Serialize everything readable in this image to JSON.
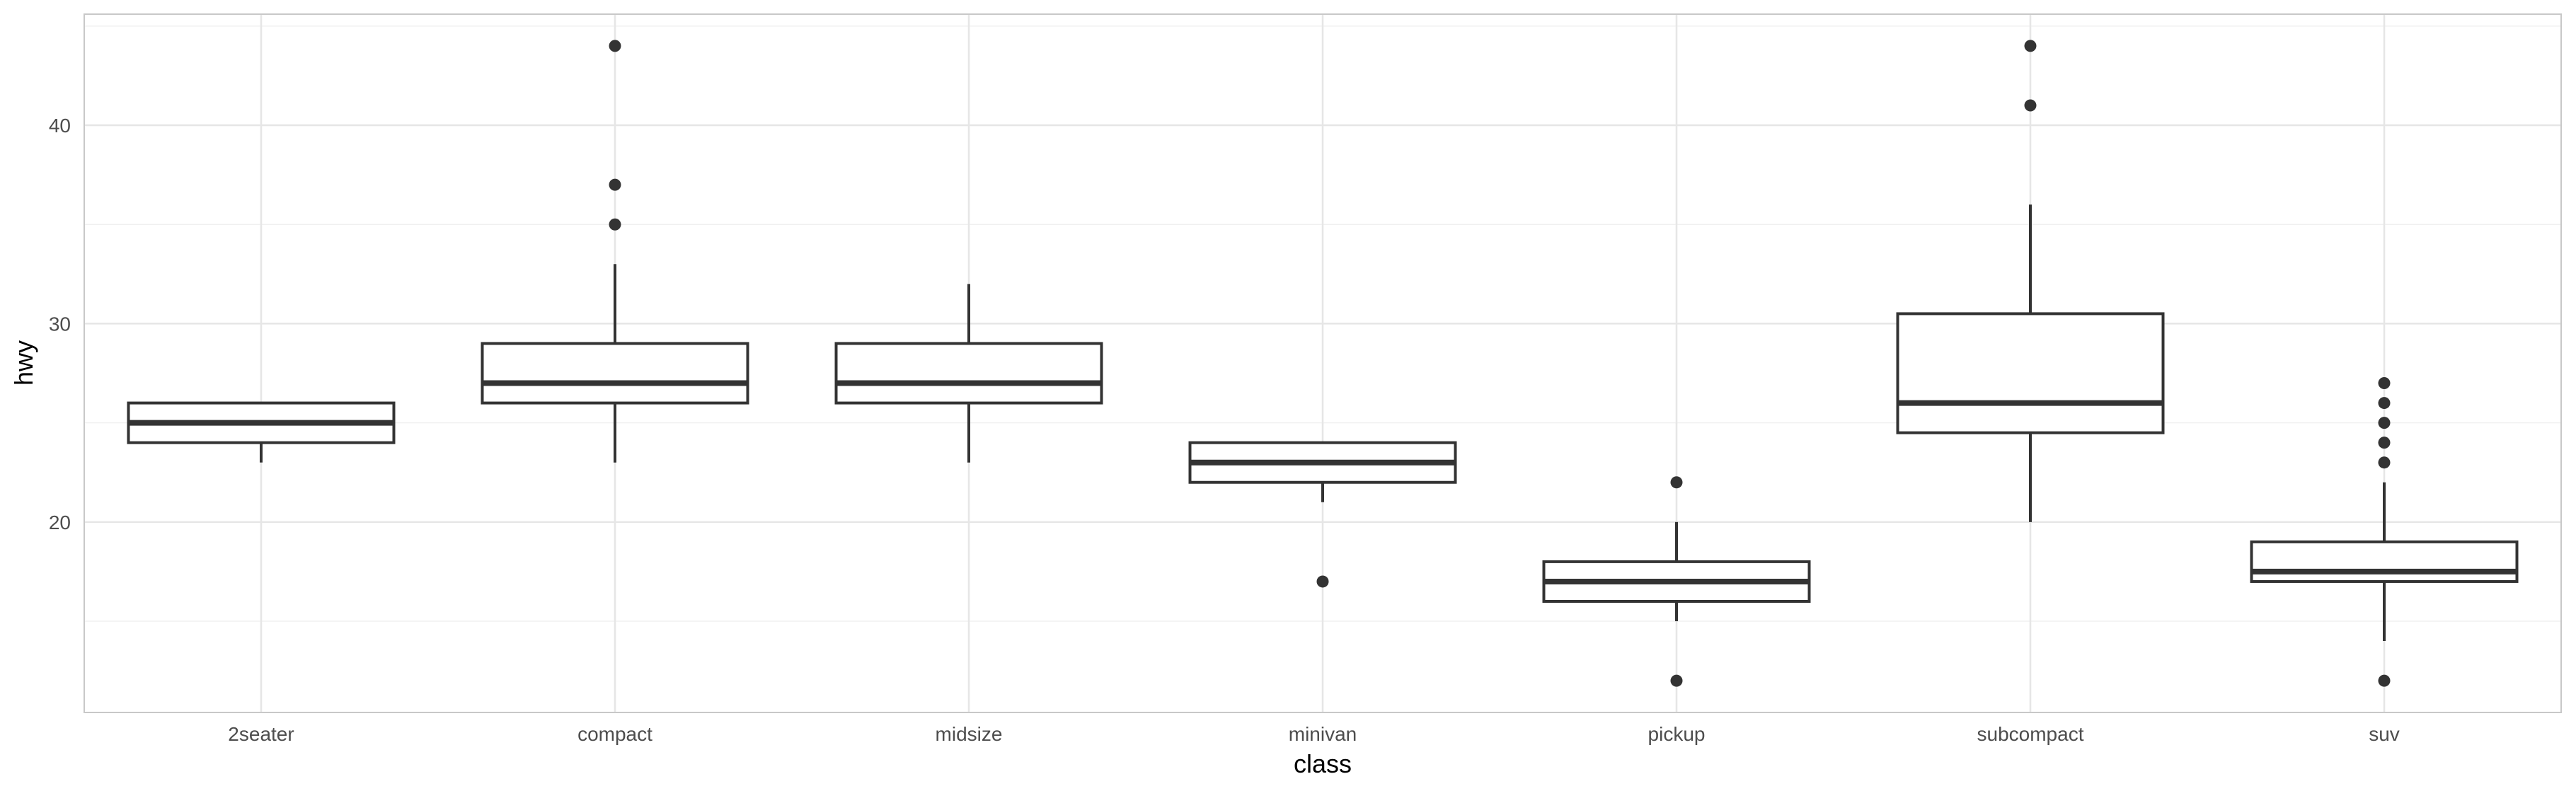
{
  "chart_data": {
    "type": "boxplot",
    "xlabel": "class",
    "ylabel": "hwy",
    "ylim": [
      10.4,
      45.6
    ],
    "yticks": [
      20,
      30,
      40
    ],
    "grid": true,
    "categories": [
      "2seater",
      "compact",
      "midsize",
      "minivan",
      "pickup",
      "subcompact",
      "suv"
    ],
    "boxes": [
      {
        "category": "2seater",
        "whisker_low": 23,
        "q1": 24,
        "median": 25,
        "q3": 26,
        "whisker_high": 26,
        "outliers": []
      },
      {
        "category": "compact",
        "whisker_low": 23,
        "q1": 26,
        "median": 27,
        "q3": 29,
        "whisker_high": 33,
        "outliers": [
          35,
          37,
          44
        ]
      },
      {
        "category": "midsize",
        "whisker_low": 23,
        "q1": 26,
        "median": 27,
        "q3": 29,
        "whisker_high": 32,
        "outliers": []
      },
      {
        "category": "minivan",
        "whisker_low": 21,
        "q1": 22,
        "median": 23,
        "q3": 24,
        "whisker_high": 24,
        "outliers": [
          17
        ]
      },
      {
        "category": "pickup",
        "whisker_low": 15,
        "q1": 16,
        "median": 17,
        "q3": 18,
        "whisker_high": 20,
        "outliers": [
          12,
          22
        ]
      },
      {
        "category": "subcompact",
        "whisker_low": 20,
        "q1": 24.5,
        "median": 26,
        "q3": 30.5,
        "whisker_high": 36,
        "outliers": [
          41,
          44
        ]
      },
      {
        "category": "suv",
        "whisker_low": 14,
        "q1": 17,
        "median": 17.5,
        "q3": 19,
        "whisker_high": 22,
        "outliers": [
          12,
          23,
          24,
          25,
          26,
          27
        ]
      }
    ],
    "colors": {
      "box_line": "#333333",
      "box_fill": "#ffffff",
      "outlier": "#333333",
      "grid": "#e6e6e6",
      "panel_border": "#c8c8c8"
    }
  }
}
